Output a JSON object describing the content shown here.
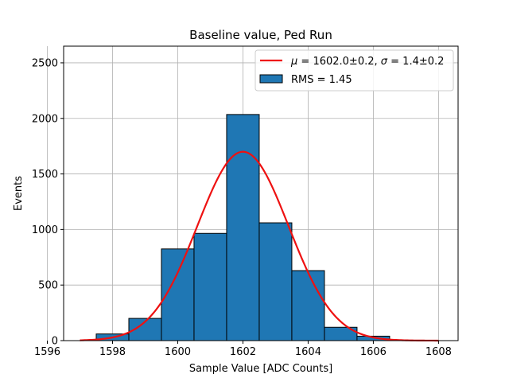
{
  "chart_data": {
    "type": "bar",
    "title": "Baseline value, Ped Run",
    "xlabel": "Sample Value [ADC Counts]",
    "ylabel": "Events",
    "xlim": [
      1596.5,
      1608.6
    ],
    "ylim": [
      0,
      2650
    ],
    "xticks": [
      1596,
      1598,
      1600,
      1602,
      1604,
      1606,
      1608
    ],
    "yticks": [
      0,
      500,
      1000,
      1500,
      2000,
      2500
    ],
    "grid": true,
    "legend_position": "top-right",
    "histogram": {
      "name": "RMS = 1.45",
      "color": "#1f77b4",
      "bins": [
        {
          "left": 1597.5,
          "right": 1598.5,
          "value": 60
        },
        {
          "left": 1598.5,
          "right": 1599.5,
          "value": 200
        },
        {
          "left": 1599.5,
          "right": 1600.5,
          "value": 825
        },
        {
          "left": 1600.5,
          "right": 1601.5,
          "value": 965
        },
        {
          "left": 1601.5,
          "right": 1602.5,
          "value": 2035
        },
        {
          "left": 1602.5,
          "right": 1603.5,
          "value": 1060
        },
        {
          "left": 1603.5,
          "right": 1604.5,
          "value": 630
        },
        {
          "left": 1604.5,
          "right": 1605.5,
          "value": 120
        },
        {
          "left": 1605.5,
          "right": 1606.5,
          "value": 40
        }
      ]
    },
    "fit": {
      "name": "μ = 1602.0±0.2, σ = 1.4±0.2",
      "legend_mu": "μ",
      "legend_mu_text": " = 1602.0±0.2, ",
      "legend_sigma": "σ",
      "legend_sigma_text": " = 1.4±0.2",
      "color": "#ee1111",
      "mu": 1602.0,
      "sigma": 1.4,
      "amplitude": 1700,
      "range": [
        1597.0,
        1608.0
      ]
    }
  }
}
